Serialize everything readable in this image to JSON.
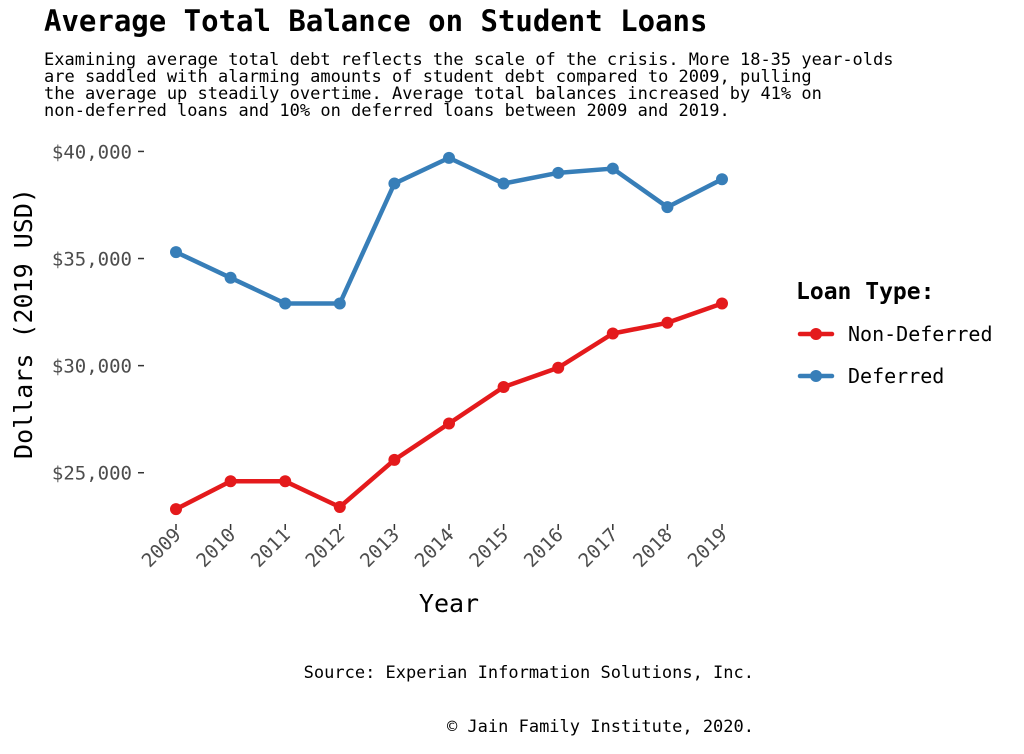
{
  "chart_data": {
    "type": "line",
    "title": "Average Total Balance on Student Loans",
    "subtitle_lines": [
      "Examining average total debt reflects the scale of the crisis. More 18-35 year-olds",
      "are saddled with alarming amounts of student debt compared to 2009, pulling",
      "the average up steadily overtime. Average total balances increased by 41% on",
      "non-deferred loans and 10% on deferred loans between 2009 and 2019."
    ],
    "xlabel": "Year",
    "ylabel": "Dollars (2019 USD)",
    "x": [
      "2009",
      "2010",
      "2011",
      "2012",
      "2013",
      "2014",
      "2015",
      "2016",
      "2017",
      "2018",
      "2019"
    ],
    "ylim": [
      22700,
      40300
    ],
    "y_ticks": [
      25000,
      30000,
      35000,
      40000
    ],
    "y_tick_labels": [
      "$25,000",
      "$30,000",
      "$35,000",
      "$40,000"
    ],
    "grid": false,
    "legend": {
      "title": "Loan Type:",
      "position": "right"
    },
    "series": [
      {
        "name": "Non-Deferred",
        "color": "#e41a1c",
        "values": [
          23300,
          24600,
          24600,
          23400,
          25600,
          27300,
          29000,
          29900,
          31500,
          32000,
          32900
        ]
      },
      {
        "name": "Deferred",
        "color": "#377eb8",
        "values": [
          35300,
          34100,
          32900,
          32900,
          38500,
          39700,
          38500,
          39000,
          39200,
          37400,
          38700
        ]
      }
    ],
    "caption_lines": [
      "Source: Experian Information Solutions, Inc.",
      "© Jain Family Institute, 2020."
    ]
  }
}
